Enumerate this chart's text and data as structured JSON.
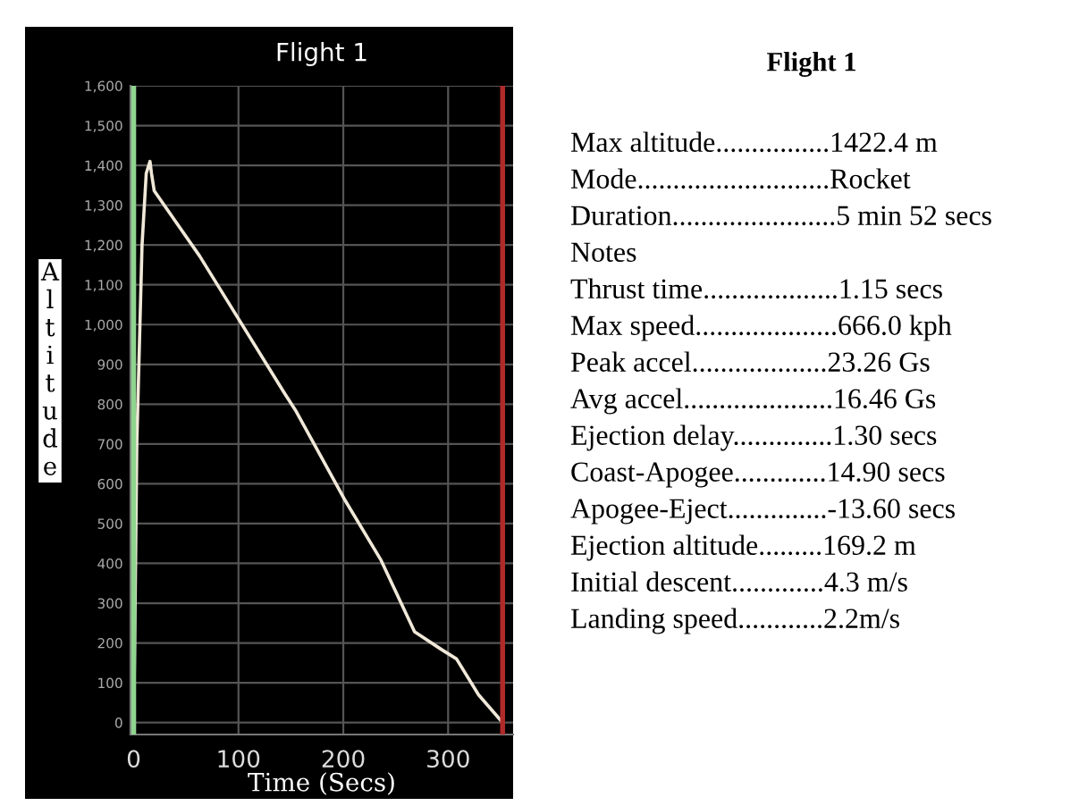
{
  "chart_data": [
    {
      "type": "line",
      "title": "Flight 1",
      "xlabel": "Time (Secs)",
      "ylabel": "Altitude",
      "series": [
        {
          "color": "#f0e8d8",
          "x": [
            0,
            1,
            3,
            8,
            12,
            15.6,
            17,
            19.6,
            63,
            144,
            155,
            202,
            236,
            268,
            294,
            308,
            329,
            352
          ],
          "values": [
            0,
            200,
            700,
            1200,
            1380,
            1410,
            1380,
            1336,
            1172,
            827,
            782,
            557,
            408,
            228,
            183,
            160,
            70,
            0
          ]
        }
      ],
      "xlim": [
        -3,
        362
      ],
      "xticks": [
        0,
        100,
        200,
        300
      ],
      "ylim": [
        -30,
        1600
      ],
      "yticks": [
        0,
        100,
        200,
        300,
        400,
        500,
        600,
        700,
        800,
        900,
        {
          "value": 1000,
          "label": "1,000"
        },
        {
          "value": 1100,
          "label": "1,100"
        },
        {
          "value": 1200,
          "label": "1,200"
        },
        {
          "value": 1300,
          "label": "1,300"
        },
        {
          "value": 1400,
          "label": "1,400"
        },
        {
          "value": 1500,
          "label": "1,500"
        },
        {
          "value": 1600,
          "label": "1,600"
        }
      ],
      "grid": true,
      "ref_lines": [
        {
          "axis": "x",
          "value": 0,
          "color": "#8fd48f"
        },
        {
          "axis": "x",
          "value": 352,
          "color": "#b02a2a"
        }
      ]
    },
    {
      "type": "other",
      "title": "Flight 1",
      "annotations": [
        "Max altitude................1422.4 m",
        "Mode...........................Rocket",
        "Duration.......................5 min 52 secs",
        "Notes",
        "Thrust time...................1.15 secs",
        "Max speed....................666.0 kph",
        "Peak accel...................23.26 Gs",
        "Avg accel.....................16.46 Gs",
        "Ejection delay..............1.30 secs",
        "Coast-Apogee.............14.90 secs",
        "Apogee-Eject..............-13.60 secs",
        "Ejection altitude.........169.2 m",
        "Initial descent.............4.3 m/s",
        "Landing speed............2.2m/s"
      ]
    }
  ]
}
